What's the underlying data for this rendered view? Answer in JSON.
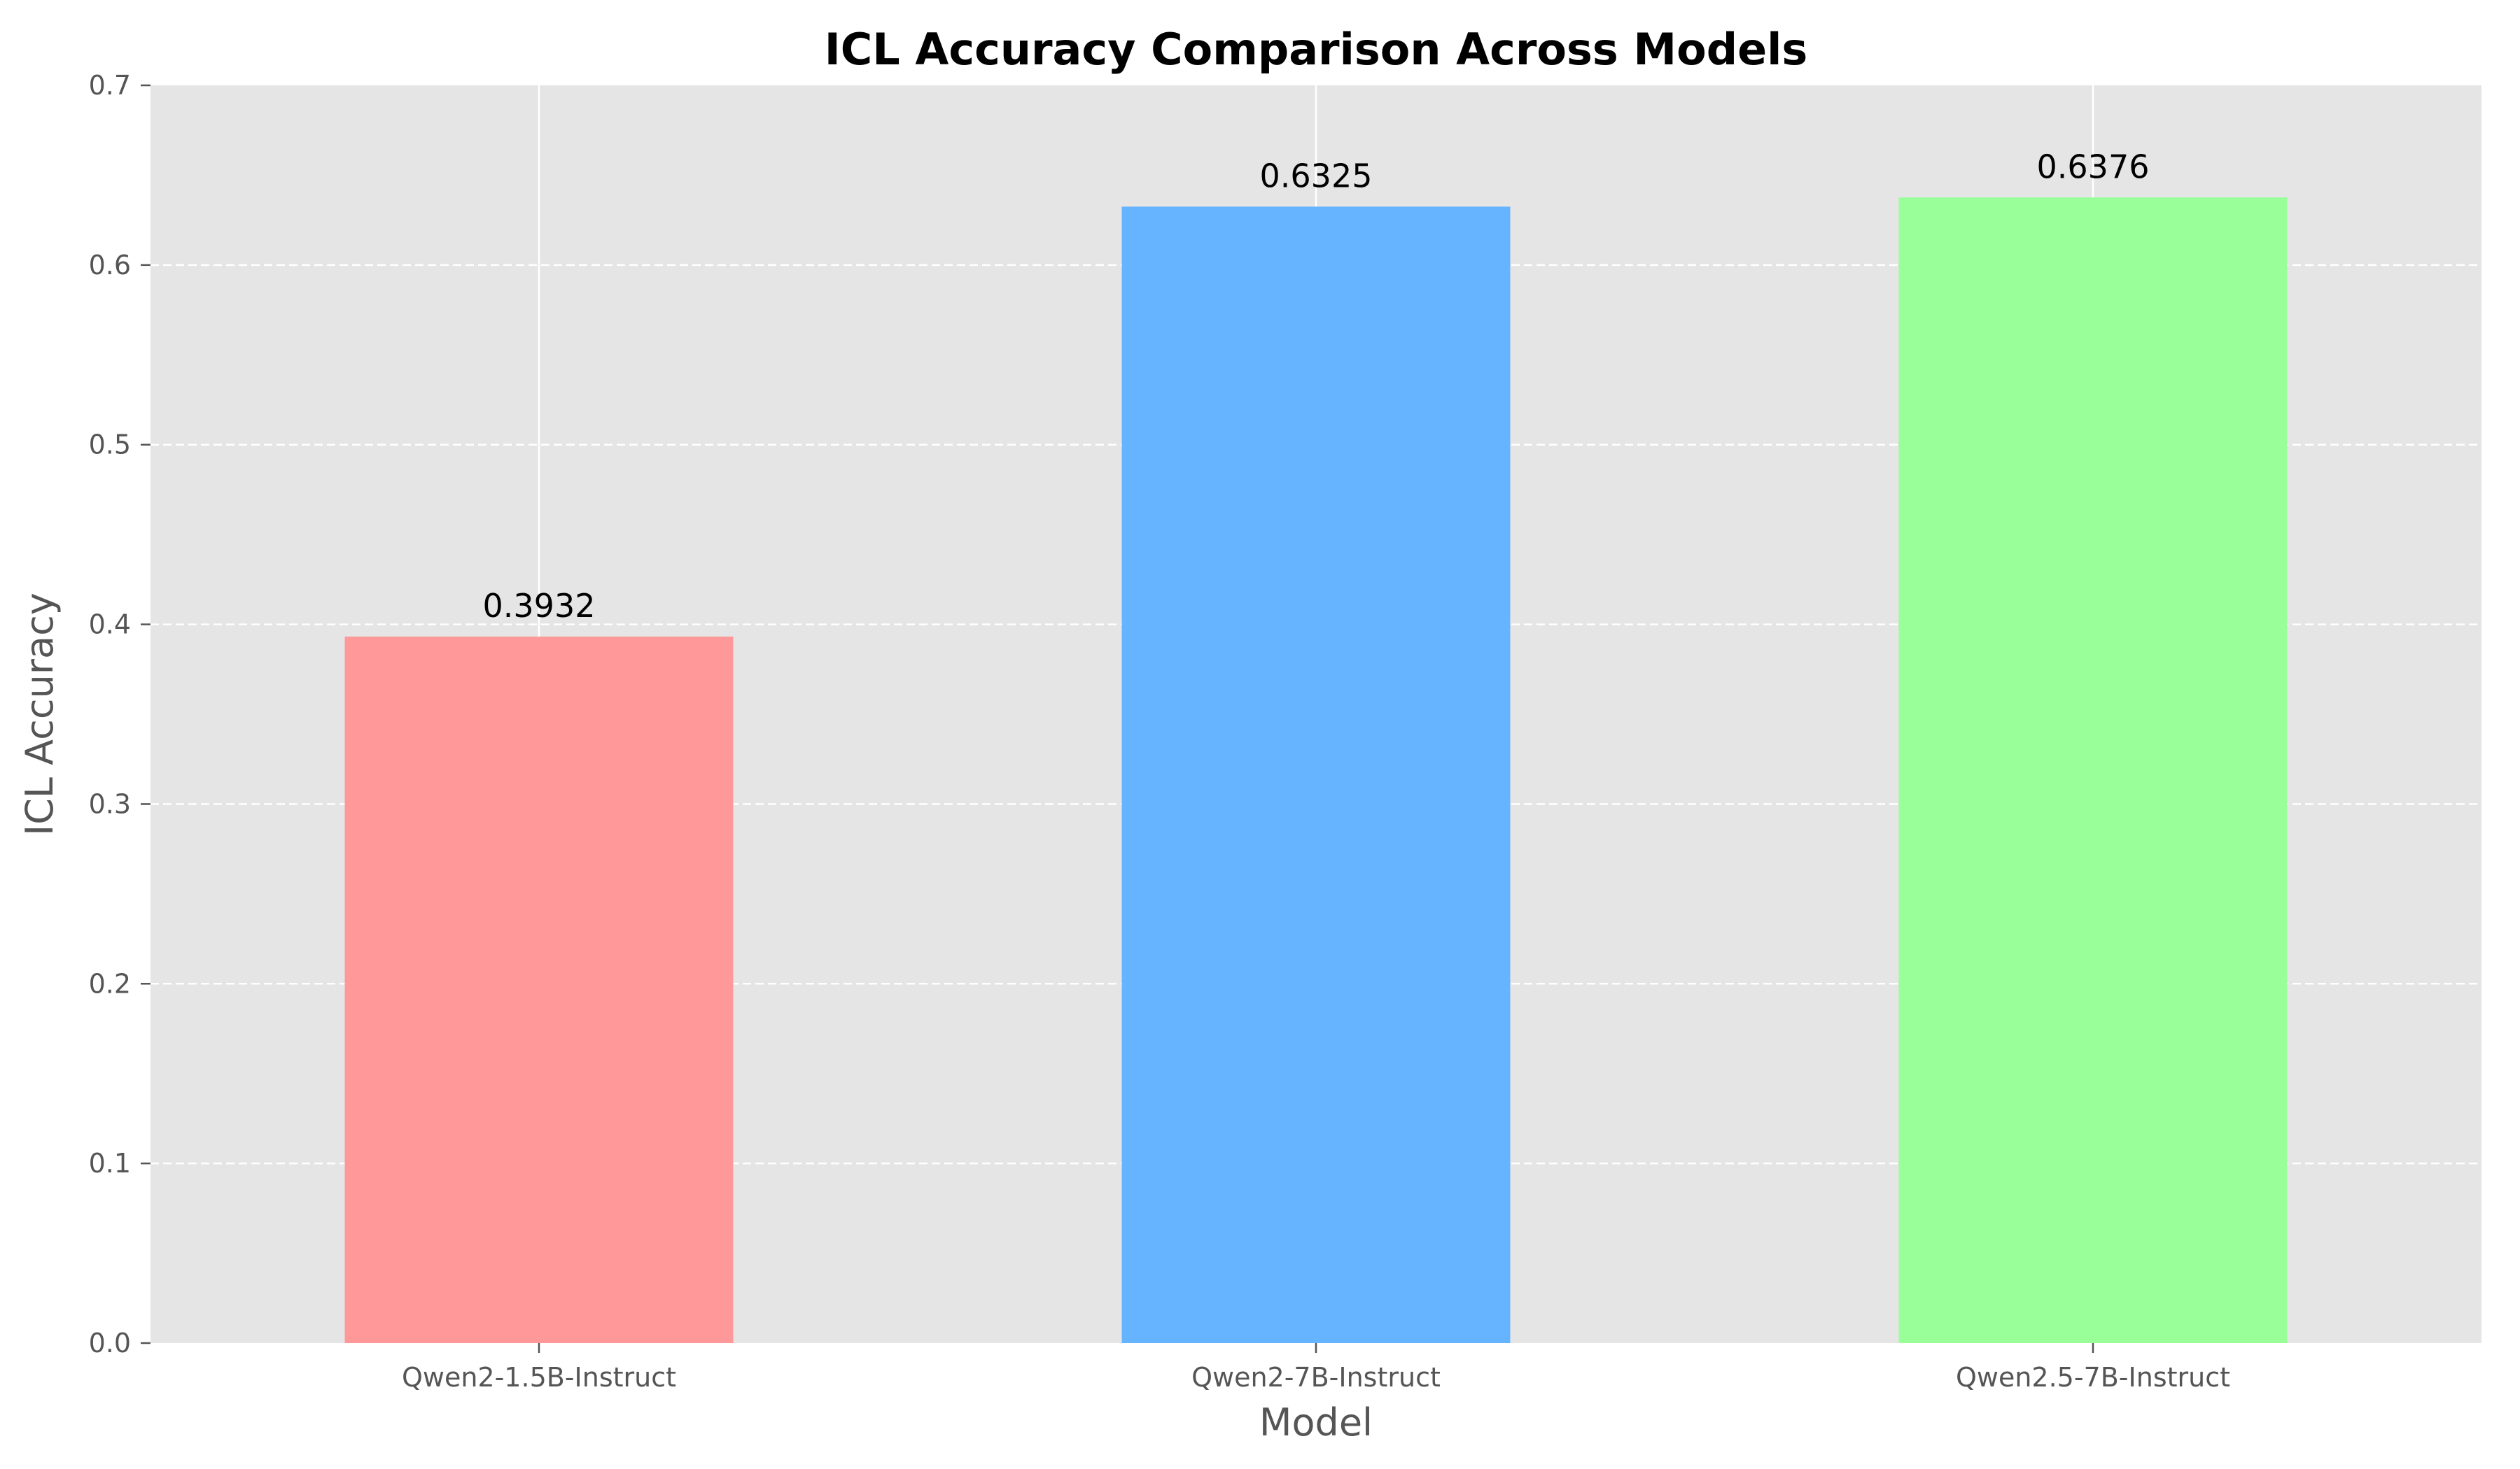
{
  "chart_data": {
    "type": "bar",
    "title": "ICL Accuracy Comparison Across Models",
    "xlabel": "Model",
    "ylabel": "ICL Accuracy",
    "categories": [
      "Qwen2-1.5B-Instruct",
      "Qwen2-7B-Instruct",
      "Qwen2.5-7B-Instruct"
    ],
    "values": [
      0.3932,
      0.6325,
      0.6376
    ],
    "value_labels": [
      "0.3932",
      "0.6325",
      "0.6376"
    ],
    "bar_colors": [
      "#ff9999",
      "#66b3ff",
      "#99ff99"
    ],
    "ylim": [
      0,
      0.7
    ],
    "yticks": [
      0.0,
      0.1,
      0.2,
      0.3,
      0.4,
      0.5,
      0.6,
      0.7
    ],
    "ytick_labels": [
      "0.0",
      "0.1",
      "0.2",
      "0.3",
      "0.4",
      "0.5",
      "0.6",
      "0.7"
    ],
    "grid": true,
    "legend": "none",
    "plot_background": "#e5e5e5",
    "grid_color": "#ffffff"
  }
}
